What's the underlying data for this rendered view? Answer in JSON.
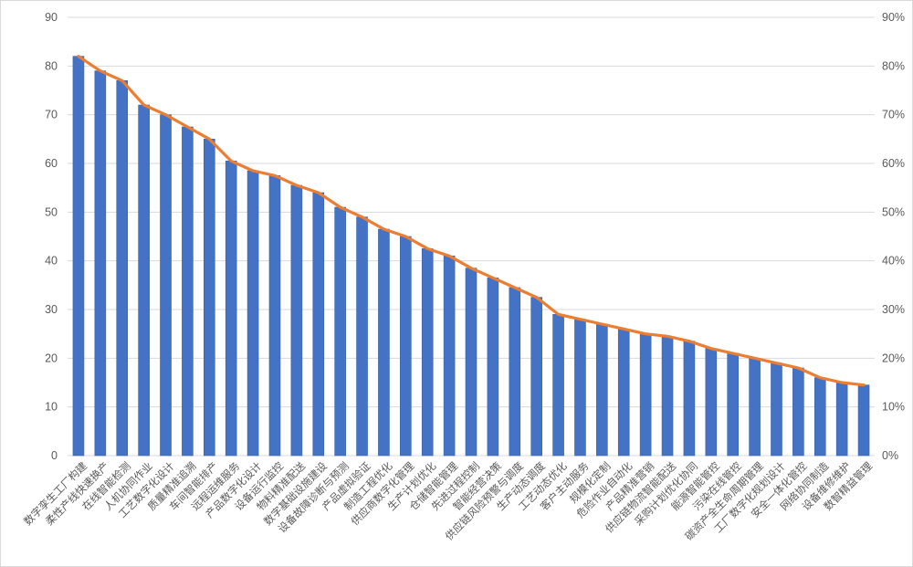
{
  "chart_data": {
    "type": "bar",
    "title": "",
    "xlabel": "",
    "ylabel": "",
    "legend_position": "none",
    "grid": true,
    "ylim": [
      0,
      90
    ],
    "yticks_left": [
      "0",
      "10",
      "20",
      "30",
      "40",
      "50",
      "60",
      "70",
      "80",
      "90"
    ],
    "yticks_right": [
      "0%",
      "10%",
      "20%",
      "30%",
      "40%",
      "50%",
      "60%",
      "70%",
      "80%",
      "90%"
    ],
    "categories": [
      "数字孪生工厂构建",
      "柔性产线快速换产",
      "在线智能检测",
      "人机协同作业",
      "工艺数字化设计",
      "质量精准追溯",
      "车间智能排产",
      "远程运维服务",
      "产品数字化设计",
      "设备运行监控",
      "物料精准配送",
      "数字基础设施建设",
      "设备故障诊断与预测",
      "产品虚拟验证",
      "制造工程优化",
      "供应商数字化管理",
      "生产计划优化",
      "仓储智能管理",
      "先进过程控制",
      "智能经营决策",
      "供应链风险预警与调度",
      "生产动态调度",
      "工艺动态优化",
      "客户主动服务",
      "规模化定制",
      "危险作业自动化",
      "产品精准营销",
      "供应链物流智能配送",
      "采购计划优化协同",
      "能源智能管控",
      "污染在线管控",
      "碳资产全生命周期管理",
      "工厂数字化规划设计",
      "安全一体化管控",
      "网络协同制造",
      "设备维修维护",
      "数智精益管理"
    ],
    "values": [
      82,
      79,
      77,
      72,
      70,
      67.5,
      65,
      60.5,
      58.5,
      57.5,
      55.5,
      54,
      51,
      49,
      46.5,
      45,
      42.5,
      41,
      38.5,
      36.5,
      34.5,
      32.5,
      29,
      28,
      27,
      26,
      25,
      24.5,
      23.5,
      22,
      21,
      20,
      19,
      18,
      16,
      15,
      14.5
    ],
    "line_overlay": {
      "type": "line",
      "values": [
        82,
        79,
        77,
        72,
        70,
        67.5,
        65,
        60.5,
        58.5,
        57.5,
        55.5,
        54,
        51,
        49,
        46.5,
        45,
        42.5,
        41,
        38.5,
        36.5,
        34.5,
        32.5,
        29,
        28,
        27,
        26,
        25,
        24.5,
        23.5,
        22,
        21,
        20,
        19,
        18,
        16,
        15,
        14.5
      ]
    },
    "colors": {
      "bar": "#4472C4",
      "bar_edge": "#3A62AC",
      "line": "#ED7D31",
      "grid": "#D9D9D9",
      "tick_text": "#595959",
      "frame": "#D9D9D9",
      "background": "#FFFFFF"
    }
  }
}
